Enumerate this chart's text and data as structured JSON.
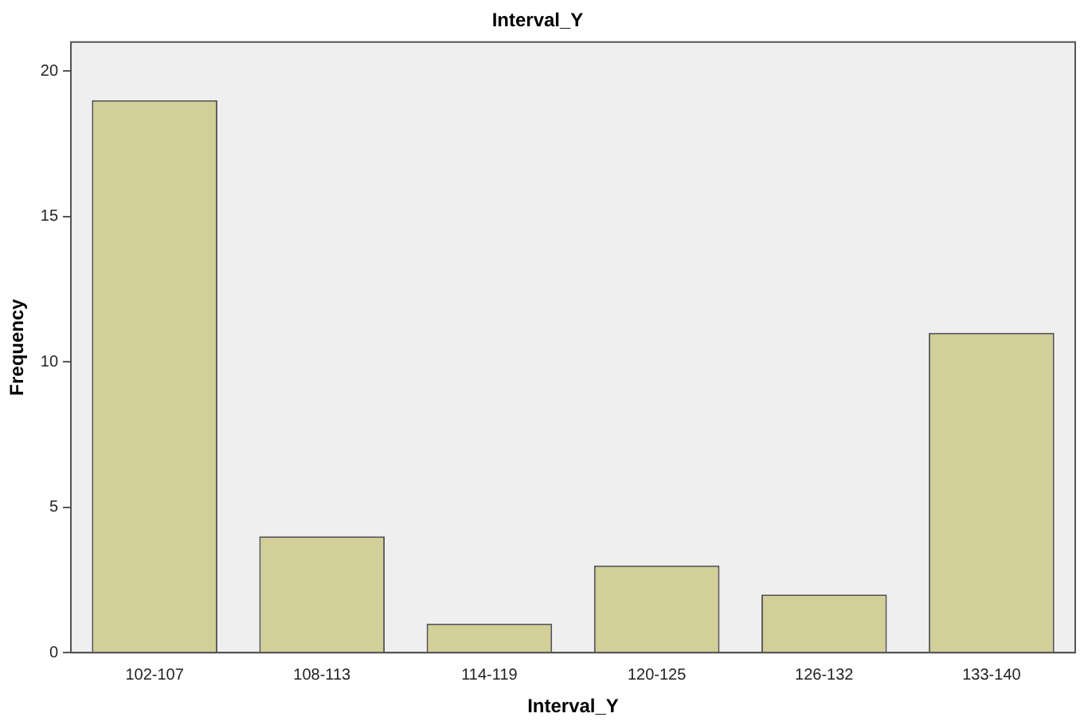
{
  "chart_data": {
    "type": "bar",
    "title": "Interval_Y",
    "xlabel": "Interval_Y",
    "ylabel": "Frequency",
    "categories": [
      "102-107",
      "108-113",
      "114-119",
      "120-125",
      "126-132",
      "133-140"
    ],
    "values": [
      19,
      4,
      1,
      3,
      2,
      11
    ],
    "color": "#d2cf98",
    "ylim": [
      0,
      21
    ],
    "yticks": [
      0,
      5,
      10,
      15,
      20
    ],
    "grid": false,
    "legend": false
  }
}
